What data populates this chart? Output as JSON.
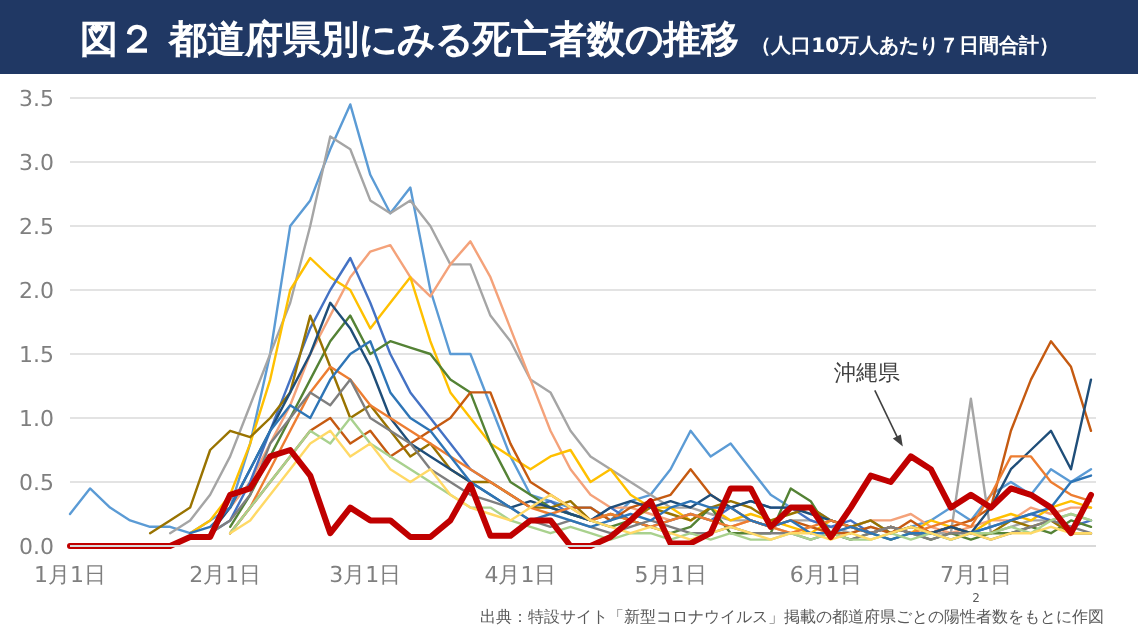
{
  "chart_data": {
    "type": "line",
    "title": "図２ 都道府県別にみる死亡者数の推移",
    "subtitle": "（人口10万人あたり７日間合計）",
    "annotations": [
      "出典：特設サイト「新型コロナウイルス」掲載の都道府県ごとの陽性者数をもとに作図",
      "2"
    ],
    "x": [
      "--01-01",
      "--01-05",
      "--01-09",
      "--01-13",
      "--01-17",
      "--01-21",
      "--01-25",
      "--01-29",
      "--02-02",
      "--02-06",
      "--02-10",
      "--02-14",
      "--02-18",
      "--02-22",
      "--02-26",
      "--03-02",
      "--03-06",
      "--03-10",
      "--03-14",
      "--03-18",
      "--03-22",
      "--03-26",
      "--03-30",
      "--04-03",
      "--04-07",
      "--04-11",
      "--04-15",
      "--04-19",
      "--04-23",
      "--04-27",
      "--05-01",
      "--05-05",
      "--05-09",
      "--05-13",
      "--05-17",
      "--05-21",
      "--05-25",
      "--05-29",
      "--06-02",
      "--06-06",
      "--06-10",
      "--06-14",
      "--06-18",
      "--06-22",
      "--06-26",
      "--06-30",
      "--07-04",
      "--07-08",
      "--07-12",
      "--07-16",
      "--07-20",
      "--07-24"
    ],
    "xlim": [
      "--01-01",
      "--07-25"
    ],
    "xticks": [
      {
        "value": "--01-01",
        "label": "1月1日"
      },
      {
        "value": "--02-01",
        "label": "2月1日"
      },
      {
        "value": "--03-01",
        "label": "3月1日"
      },
      {
        "value": "--04-01",
        "label": "4月1日"
      },
      {
        "value": "--05-01",
        "label": "5月1日"
      },
      {
        "value": "--06-01",
        "label": "6月1日"
      },
      {
        "value": "--07-01",
        "label": "7月1日"
      }
    ],
    "ylim": [
      0,
      3.5
    ],
    "yticks": [
      {
        "value": 0,
        "label": "0.0"
      },
      0.5,
      {
        "value": 1,
        "label": "1.0"
      },
      1.5,
      {
        "value": 2,
        "label": "2.0"
      },
      2.5,
      {
        "value": 3,
        "label": "3.0"
      },
      3.5
    ],
    "grid": "y",
    "series": [
      {
        "color": "#5b9bd5",
        "values": [
          0.25,
          0.45,
          0.3,
          0.2,
          0.15,
          0.15,
          0.1,
          0.2,
          0.3,
          0.8,
          1.5,
          2.5,
          2.7,
          3.1,
          3.45,
          2.9,
          2.6,
          2.8,
          2.0,
          1.5,
          1.5,
          1.1,
          0.7,
          0.4,
          0.35,
          0.3,
          0.3,
          0.2,
          0.35,
          0.4,
          0.6,
          0.9,
          0.7,
          0.8,
          0.6,
          0.4,
          0.3,
          0.3,
          0.2,
          0.15,
          0.2,
          0.1,
          0.15,
          0.2,
          0.3,
          0.2,
          0.4,
          0.5,
          0.4,
          0.6,
          0.5,
          0.6
        ]
      },
      {
        "color": "#a5a5a5",
        "values": [
          null,
          null,
          null,
          null,
          null,
          0.1,
          0.2,
          0.4,
          0.7,
          1.1,
          1.5,
          1.9,
          2.5,
          3.2,
          3.1,
          2.7,
          2.6,
          2.7,
          2.5,
          2.2,
          2.2,
          1.8,
          1.6,
          1.3,
          1.2,
          0.9,
          0.7,
          0.6,
          0.5,
          0.4,
          0.3,
          0.3,
          0.25,
          0.2,
          0.2,
          0.15,
          0.2,
          0.2,
          0.15,
          0.1,
          0.15,
          0.1,
          0.15,
          0.1,
          0.1,
          1.15,
          0.1,
          0.15,
          0.2,
          0.2,
          0.25,
          0.2
        ]
      },
      {
        "color": "#f4a27a",
        "values": [
          null,
          null,
          null,
          null,
          null,
          null,
          null,
          0.1,
          0.3,
          0.5,
          0.8,
          1.1,
          1.5,
          1.8,
          2.1,
          2.3,
          2.35,
          2.1,
          1.95,
          2.2,
          2.38,
          2.1,
          1.7,
          1.3,
          0.9,
          0.6,
          0.4,
          0.3,
          0.3,
          0.25,
          0.2,
          0.25,
          0.2,
          0.15,
          0.2,
          0.15,
          0.1,
          0.15,
          0.1,
          0.15,
          0.2,
          0.2,
          0.25,
          0.15,
          0.1,
          0.15,
          0.2,
          0.2,
          0.3,
          0.25,
          0.3,
          0.3
        ]
      },
      {
        "color": "#ffc000",
        "values": [
          null,
          null,
          null,
          null,
          null,
          null,
          0.1,
          0.2,
          0.4,
          0.8,
          1.3,
          2.0,
          2.25,
          2.1,
          2.0,
          1.7,
          1.9,
          2.1,
          1.6,
          1.2,
          1.0,
          0.8,
          0.7,
          0.6,
          0.7,
          0.75,
          0.5,
          0.6,
          0.4,
          0.3,
          0.3,
          0.2,
          0.3,
          0.2,
          0.25,
          0.2,
          0.15,
          0.1,
          0.2,
          0.15,
          0.1,
          0.15,
          0.1,
          0.2,
          0.15,
          0.1,
          0.2,
          0.25,
          0.2,
          0.3,
          0.35,
          0.3
        ]
      },
      {
        "color": "#4472c4",
        "values": [
          null,
          null,
          null,
          null,
          null,
          null,
          null,
          0.1,
          0.2,
          0.5,
          0.9,
          1.3,
          1.7,
          2.0,
          2.25,
          1.9,
          1.5,
          1.2,
          1.0,
          0.8,
          0.6,
          0.5,
          0.4,
          0.3,
          0.35,
          0.25,
          0.2,
          0.3,
          0.2,
          0.15,
          0.2,
          0.25,
          0.2,
          0.3,
          0.35,
          0.3,
          0.3,
          0.2,
          0.15,
          0.2,
          0.1,
          0.15,
          0.1,
          0.1,
          0.15,
          0.1,
          0.15,
          0.2,
          0.25,
          0.2,
          0.15,
          0.2
        ]
      },
      {
        "color": "#548235",
        "values": [
          null,
          null,
          null,
          null,
          null,
          null,
          null,
          null,
          0.15,
          0.4,
          0.7,
          1.0,
          1.3,
          1.6,
          1.8,
          1.5,
          1.6,
          1.55,
          1.5,
          1.3,
          1.2,
          0.8,
          0.5,
          0.4,
          0.3,
          0.25,
          0.2,
          0.15,
          0.2,
          0.15,
          0.1,
          0.15,
          0.3,
          0.1,
          0.1,
          0.1,
          0.45,
          0.35,
          0.1,
          0.05,
          0.1,
          0.05,
          0.1,
          0.05,
          0.1,
          0.05,
          0.1,
          0.1,
          0.15,
          0.1,
          0.2,
          0.15
        ]
      },
      {
        "color": "#997300",
        "values": [
          null,
          null,
          null,
          null,
          0.1,
          0.2,
          0.3,
          0.75,
          0.9,
          0.85,
          1.0,
          1.2,
          1.8,
          1.4,
          1.0,
          1.1,
          0.9,
          0.7,
          0.8,
          0.6,
          0.5,
          0.5,
          0.4,
          0.3,
          0.3,
          0.35,
          0.2,
          0.25,
          0.2,
          0.3,
          0.25,
          0.2,
          0.3,
          0.35,
          0.3,
          0.2,
          0.25,
          0.3,
          0.2,
          0.15,
          0.2,
          0.1,
          0.15,
          0.1,
          0.15,
          0.1,
          0.1,
          0.2,
          0.15,
          0.2,
          0.1,
          0.1
        ]
      },
      {
        "color": "#c55a11",
        "values": [
          null,
          null,
          null,
          null,
          null,
          null,
          null,
          null,
          0.1,
          0.3,
          0.5,
          0.7,
          0.9,
          1.0,
          0.8,
          0.9,
          0.7,
          0.8,
          0.9,
          1.0,
          1.2,
          1.2,
          0.8,
          0.5,
          0.4,
          0.3,
          0.3,
          0.2,
          0.3,
          0.35,
          0.4,
          0.6,
          0.4,
          0.3,
          0.2,
          0.15,
          0.2,
          0.15,
          0.1,
          0.1,
          0.15,
          0.1,
          0.2,
          0.1,
          0.15,
          0.2,
          0.3,
          0.9,
          1.3,
          1.6,
          1.4,
          0.9
        ]
      },
      {
        "color": "#1f4e79",
        "values": [
          null,
          null,
          null,
          null,
          null,
          null,
          null,
          0.1,
          0.3,
          0.6,
          0.9,
          1.2,
          1.5,
          1.9,
          1.7,
          1.4,
          1.0,
          0.8,
          0.7,
          0.6,
          0.5,
          0.4,
          0.3,
          0.35,
          0.3,
          0.25,
          0.2,
          0.3,
          0.35,
          0.3,
          0.35,
          0.3,
          0.4,
          0.3,
          0.35,
          0.3,
          0.3,
          0.25,
          0.2,
          0.15,
          0.1,
          0.15,
          0.1,
          0.1,
          0.15,
          0.1,
          0.3,
          0.6,
          0.75,
          0.9,
          0.6,
          1.3
        ]
      },
      {
        "color": "#ed7d31",
        "values": [
          null,
          null,
          null,
          null,
          null,
          null,
          null,
          null,
          0.1,
          0.3,
          0.6,
          0.9,
          1.2,
          1.4,
          1.3,
          1.1,
          1.0,
          0.9,
          0.8,
          0.7,
          0.6,
          0.5,
          0.4,
          0.3,
          0.25,
          0.3,
          0.2,
          0.25,
          0.2,
          0.15,
          0.2,
          0.25,
          0.2,
          0.15,
          0.2,
          0.15,
          0.1,
          0.15,
          0.2,
          0.15,
          0.1,
          0.15,
          0.1,
          0.15,
          0.2,
          0.15,
          0.4,
          0.7,
          0.7,
          0.5,
          0.4,
          0.35
        ]
      },
      {
        "color": "#7f7f7f",
        "values": [
          null,
          null,
          null,
          null,
          null,
          null,
          null,
          0.1,
          0.2,
          0.4,
          0.8,
          1.0,
          1.2,
          1.1,
          1.3,
          1.0,
          0.9,
          0.8,
          0.6,
          0.5,
          0.4,
          0.35,
          0.3,
          0.2,
          0.15,
          0.2,
          0.15,
          0.1,
          0.15,
          0.2,
          0.15,
          0.1,
          0.1,
          0.15,
          0.1,
          0.1,
          0.1,
          0.05,
          0.1,
          0.05,
          0.1,
          0.15,
          0.1,
          0.05,
          0.1,
          0.1,
          0.05,
          0.1,
          0.15,
          0.2,
          0.15,
          0.1
        ]
      },
      {
        "color": "#2e75b6",
        "values": [
          null,
          null,
          null,
          null,
          null,
          null,
          0.1,
          0.15,
          0.3,
          0.6,
          0.9,
          1.1,
          1.0,
          1.3,
          1.5,
          1.6,
          1.2,
          1.0,
          0.9,
          0.7,
          0.5,
          0.4,
          0.3,
          0.2,
          0.25,
          0.2,
          0.15,
          0.2,
          0.25,
          0.2,
          0.3,
          0.35,
          0.3,
          0.3,
          0.2,
          0.15,
          0.2,
          0.1,
          0.1,
          0.15,
          0.1,
          0.05,
          0.1,
          0.1,
          0.05,
          0.1,
          0.15,
          0.2,
          0.25,
          0.3,
          0.5,
          0.55
        ]
      },
      {
        "color": "#a9d18e",
        "values": [
          null,
          null,
          null,
          null,
          null,
          null,
          null,
          null,
          0.1,
          0.3,
          0.5,
          0.7,
          0.9,
          0.8,
          1.0,
          0.8,
          0.7,
          0.6,
          0.5,
          0.4,
          0.3,
          0.3,
          0.2,
          0.15,
          0.1,
          0.15,
          0.1,
          0.05,
          0.1,
          0.1,
          0.05,
          0.1,
          0.05,
          0.1,
          0.05,
          0.05,
          0.1,
          0.05,
          0.1,
          0.05,
          0.05,
          0.1,
          0.05,
          0.1,
          0.05,
          0.1,
          0.1,
          0.15,
          0.1,
          0.2,
          0.25,
          0.2
        ]
      },
      {
        "color": "#ffd966",
        "values": [
          null,
          null,
          null,
          null,
          null,
          null,
          null,
          null,
          0.1,
          0.2,
          0.4,
          0.6,
          0.8,
          0.9,
          0.7,
          0.8,
          0.6,
          0.5,
          0.6,
          0.4,
          0.3,
          0.25,
          0.2,
          0.3,
          0.4,
          0.3,
          0.2,
          0.15,
          0.1,
          0.15,
          0.1,
          0.05,
          0.1,
          0.15,
          0.1,
          0.05,
          0.1,
          0.1,
          0.05,
          0.1,
          0.05,
          0.1,
          0.15,
          0.1,
          0.05,
          0.1,
          0.05,
          0.1,
          0.1,
          0.15,
          0.1,
          0.1
        ]
      },
      {
        "name": "沖縄県",
        "color": "#c00000",
        "values": [
          0,
          0,
          0,
          0,
          0,
          0,
          0.07,
          0.07,
          0.4,
          0.45,
          0.7,
          0.75,
          0.55,
          0.1,
          0.3,
          0.2,
          0.2,
          0.07,
          0.07,
          0.2,
          0.48,
          0.08,
          0.08,
          0.2,
          0.2,
          0,
          0,
          0.07,
          0.2,
          0.35,
          0.02,
          0.02,
          0.1,
          0.45,
          0.45,
          0.15,
          0.3,
          0.3,
          0.07,
          0.3,
          0.55,
          0.5,
          0.7,
          0.6,
          0.3,
          0.4,
          0.3,
          0.45,
          0.4,
          0.3,
          0.1,
          0.4
        ]
      }
    ]
  }
}
